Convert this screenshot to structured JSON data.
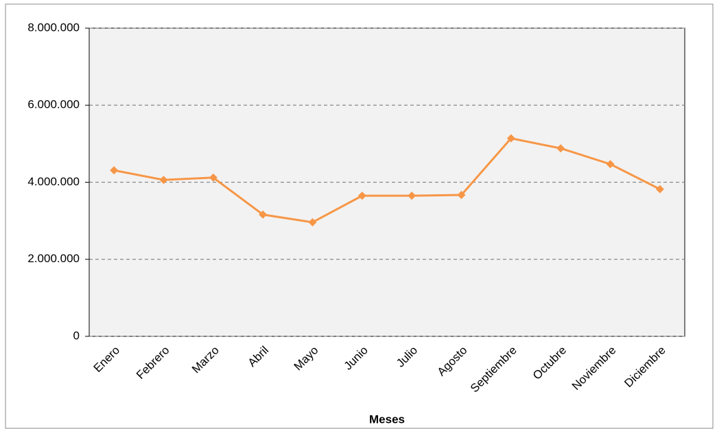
{
  "chart_data": {
    "type": "line",
    "x_label": "Meses",
    "categories": [
      "Enero",
      "Febrero",
      "Marzo",
      "Abril",
      "Mayo",
      "Junio",
      "Julio",
      "Agosto",
      "Septiembre",
      "Octubre",
      "Noviembre",
      "Diciembre"
    ],
    "series": [
      {
        "color": "#f79646",
        "values": [
          4310000,
          4060000,
          4120000,
          3160000,
          2960000,
          3650000,
          3650000,
          3670000,
          5140000,
          4880000,
          4470000,
          3820000
        ]
      }
    ],
    "ylim": [
      0,
      8000000
    ],
    "yticks": [
      0,
      {
        "value": 2000000,
        "label": "2.000.000"
      },
      {
        "value": 4000000,
        "label": "4.000.000"
      },
      {
        "value": 6000000,
        "label": "6.000.000"
      },
      {
        "value": 8000000,
        "label": "8.000.000"
      }
    ],
    "grid": true
  }
}
